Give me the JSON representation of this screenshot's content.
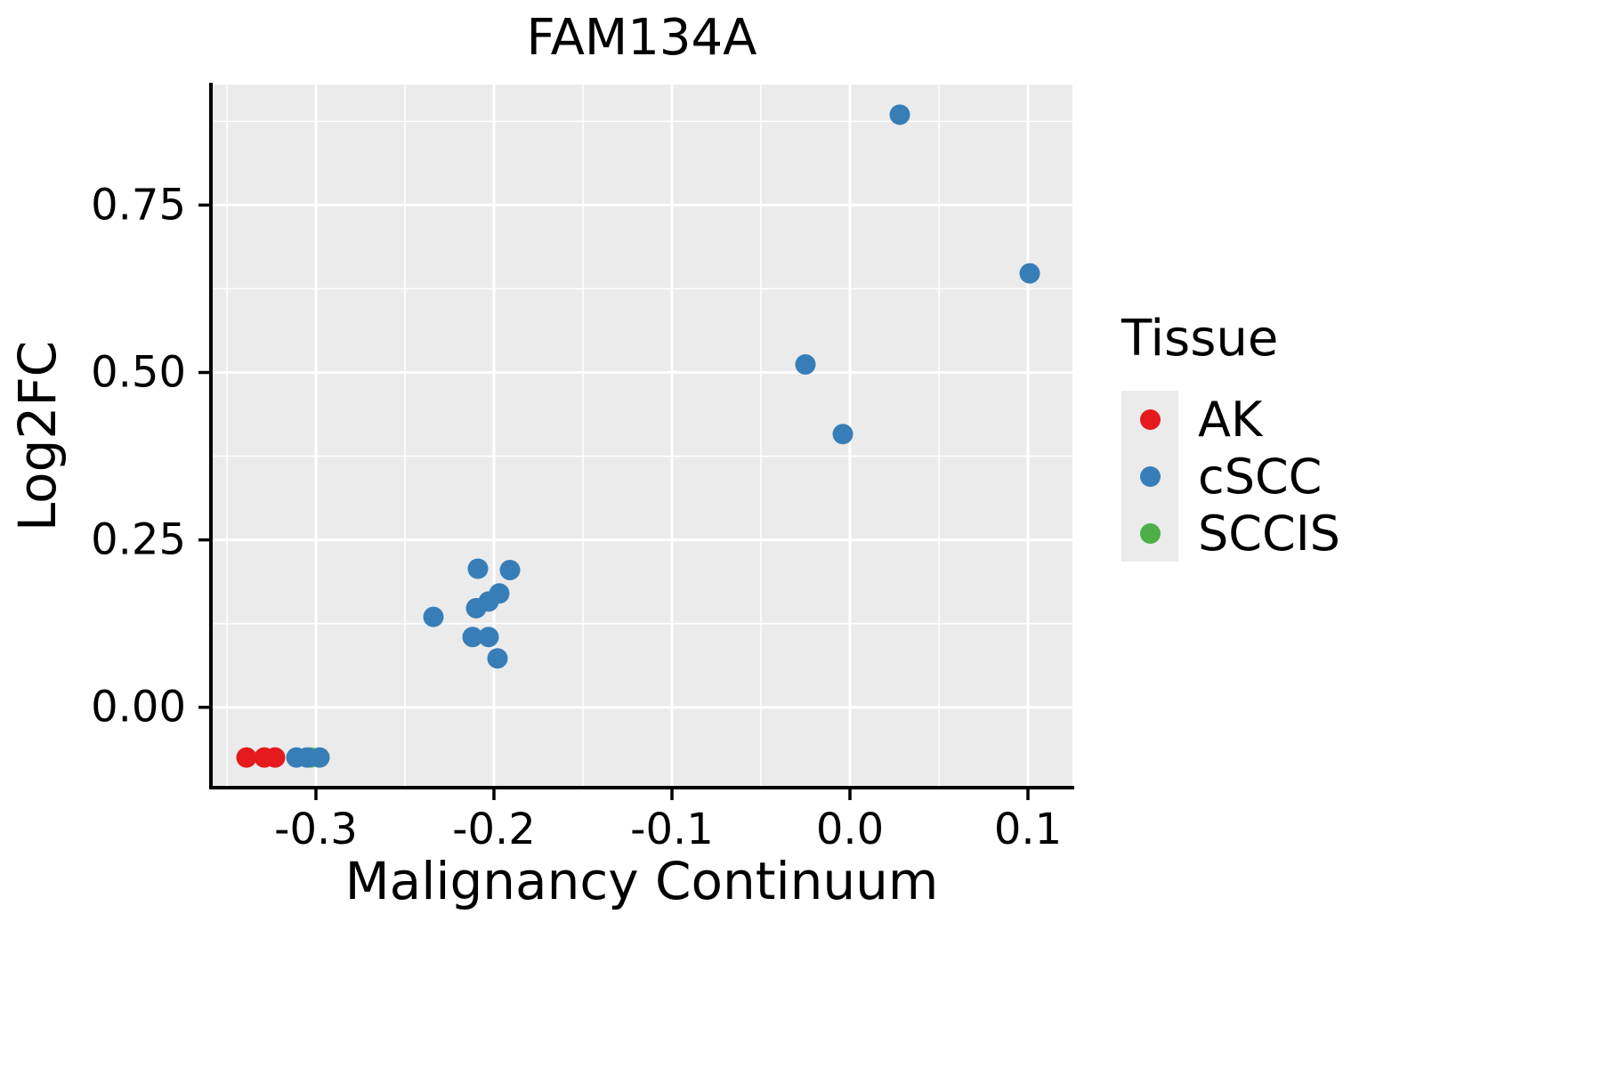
{
  "chart_data": {
    "type": "scatter",
    "title": "FAM134A",
    "xlabel": "Malignancy Continuum",
    "ylabel": "Log2FC",
    "xlim": [
      -0.359,
      0.125
    ],
    "ylim": [
      -0.12,
      0.93
    ],
    "x_ticks": [
      -0.3,
      -0.2,
      -0.1,
      0.0,
      0.1
    ],
    "x_tick_labels": [
      "-0.3",
      "-0.2",
      "-0.1",
      "0.0",
      "0.1"
    ],
    "y_ticks": [
      0.0,
      0.25,
      0.5,
      0.75
    ],
    "y_tick_labels": [
      "0.00",
      "0.25",
      "0.50",
      "0.75"
    ],
    "grid": true,
    "legend_position": "right",
    "panel_background": "#EBEBEB",
    "grid_color": "#FFFFFF",
    "axis_color": "#000000",
    "point_radius": 11.5,
    "legend": {
      "title": "Tissue",
      "items": [
        {
          "label": "AK",
          "color": "#E41A1C"
        },
        {
          "label": "cSCC",
          "color": "#377EB8"
        },
        {
          "label": "SCCIS",
          "color": "#4DAF4A"
        }
      ]
    },
    "series": [
      {
        "name": "AK",
        "color": "#E41A1C",
        "points": [
          [
            -0.339,
            -0.075
          ],
          [
            -0.329,
            -0.075
          ],
          [
            -0.323,
            -0.075
          ]
        ]
      },
      {
        "name": "SCCIS",
        "color": "#4DAF4A",
        "points": [
          [
            -0.303,
            -0.075
          ]
        ]
      },
      {
        "name": "cSCC",
        "color": "#377EB8",
        "points": [
          [
            -0.311,
            -0.075
          ],
          [
            -0.305,
            -0.075
          ],
          [
            -0.298,
            -0.075
          ],
          [
            -0.234,
            0.135
          ],
          [
            -0.209,
            0.207
          ],
          [
            -0.191,
            0.205
          ],
          [
            -0.21,
            0.148
          ],
          [
            -0.203,
            0.158
          ],
          [
            -0.197,
            0.17
          ],
          [
            -0.212,
            0.105
          ],
          [
            -0.203,
            0.105
          ],
          [
            -0.198,
            0.073
          ],
          [
            -0.025,
            0.512
          ],
          [
            -0.004,
            0.408
          ],
          [
            0.028,
            0.885
          ],
          [
            0.101,
            0.648
          ]
        ]
      }
    ]
  }
}
